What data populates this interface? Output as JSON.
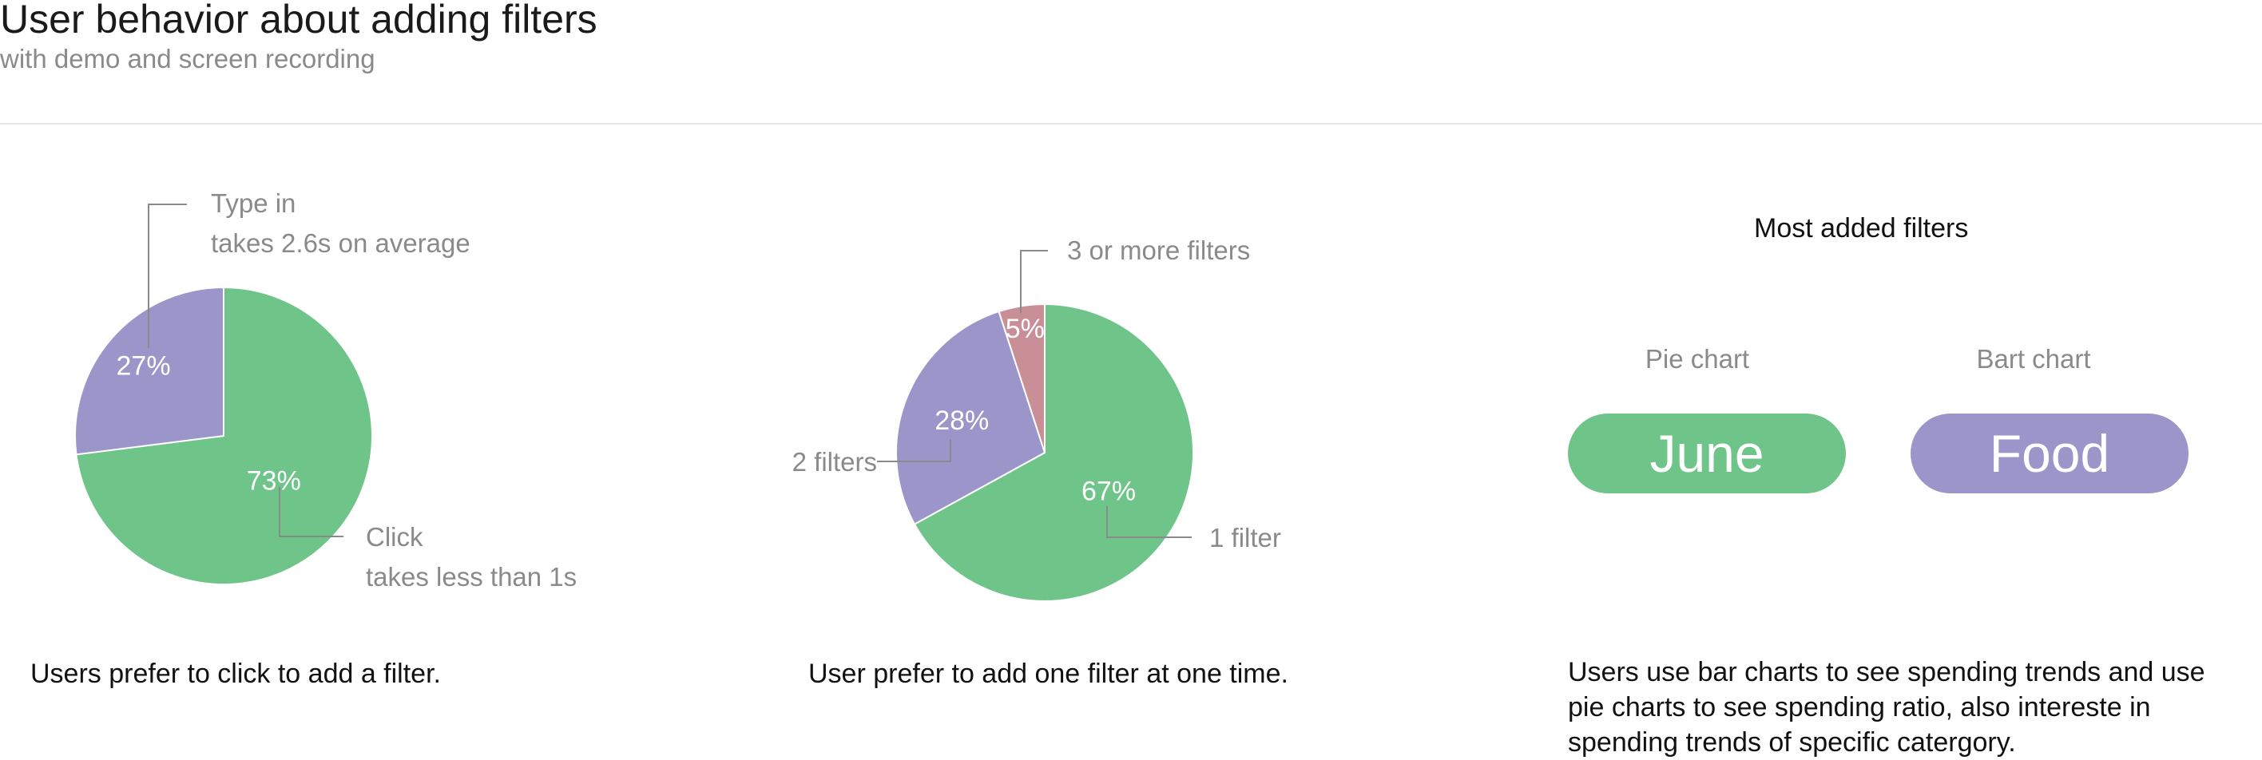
{
  "header": {
    "title": "User behavior about adding filters",
    "subtitle": "with demo and screen recording"
  },
  "colors": {
    "green": "#6ec489",
    "purple": "#9b95c9",
    "pink": "#c98f97"
  },
  "chart_data": [
    {
      "type": "pie",
      "title": "",
      "slices": [
        {
          "name": "Click",
          "value": 73,
          "label": "73%",
          "color": "#6ec489",
          "annotation": [
            "Click",
            "takes less than 1s"
          ]
        },
        {
          "name": "Type in",
          "value": 27,
          "label": "27%",
          "color": "#9b95c9",
          "annotation": [
            "Type in",
            "takes 2.6s on average"
          ]
        }
      ],
      "caption": "Users prefer to click to add a filter."
    },
    {
      "type": "pie",
      "title": "",
      "slices": [
        {
          "name": "1 filter",
          "value": 67,
          "label": "67%",
          "color": "#6ec489",
          "annotation": [
            "1 filter"
          ]
        },
        {
          "name": "2 filters",
          "value": 28,
          "label": "28%",
          "color": "#9b95c9",
          "annotation": [
            "2 filters"
          ]
        },
        {
          "name": "3 or more filters",
          "value": 5,
          "label": "5%",
          "color": "#c98f97",
          "annotation": [
            "3 or more filters"
          ]
        }
      ],
      "caption": "User prefer to add one filter at one time."
    }
  ],
  "most_added": {
    "heading": "Most added filters",
    "columns": [
      {
        "label": "Pie chart",
        "pill": "June",
        "color": "#6ec489"
      },
      {
        "label": "Bart chart",
        "pill": "Food",
        "color": "#9b95c9"
      }
    ],
    "caption": "Users use bar charts to see spending trends and use pie charts to see spending ratio, also intereste in spending trends of specific catergory."
  }
}
